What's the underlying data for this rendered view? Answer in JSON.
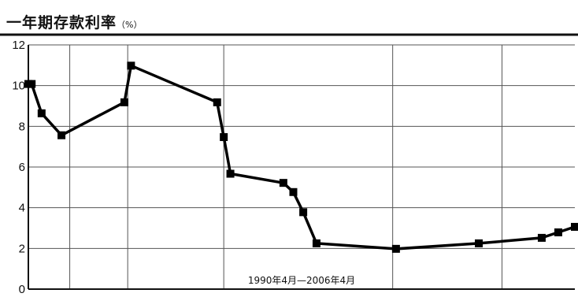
{
  "title": "一年期存款利率",
  "unit": "（%）",
  "chart_data": {
    "type": "line",
    "title": "一年期存款利率",
    "unit": "（%）",
    "annotation": "1990年4月—2006年4月",
    "ylim": [
      0,
      12
    ],
    "y_ticks": [
      "0",
      "2",
      "4",
      "6",
      "8",
      "10",
      "12"
    ],
    "xlim": [
      1990.0,
      2006.5
    ],
    "grid": true,
    "x_gridlines": [
      1990.0,
      1991.25,
      1993.0,
      1995.9,
      2001.0,
      2004.3
    ],
    "series": [
      {
        "color": "#000000",
        "points": [
          {
            "x": 1990.0,
            "y": 10.08
          },
          {
            "x": 1990.1,
            "y": 10.08
          },
          {
            "x": 1990.4,
            "y": 8.64
          },
          {
            "x": 1991.0,
            "y": 7.56
          },
          {
            "x": 1992.9,
            "y": 9.18
          },
          {
            "x": 1993.1,
            "y": 10.98
          },
          {
            "x": 1995.7,
            "y": 9.18
          },
          {
            "x": 1995.9,
            "y": 7.47
          },
          {
            "x": 1996.1,
            "y": 5.67
          },
          {
            "x": 1997.7,
            "y": 5.22
          },
          {
            "x": 1998.0,
            "y": 4.77
          },
          {
            "x": 1998.3,
            "y": 3.78
          },
          {
            "x": 1998.7,
            "y": 2.25
          },
          {
            "x": 2001.1,
            "y": 1.98
          },
          {
            "x": 2003.6,
            "y": 2.25
          },
          {
            "x": 2005.5,
            "y": 2.52
          },
          {
            "x": 2006.0,
            "y": 2.79
          },
          {
            "x": 2006.5,
            "y": 3.06
          }
        ]
      }
    ]
  }
}
